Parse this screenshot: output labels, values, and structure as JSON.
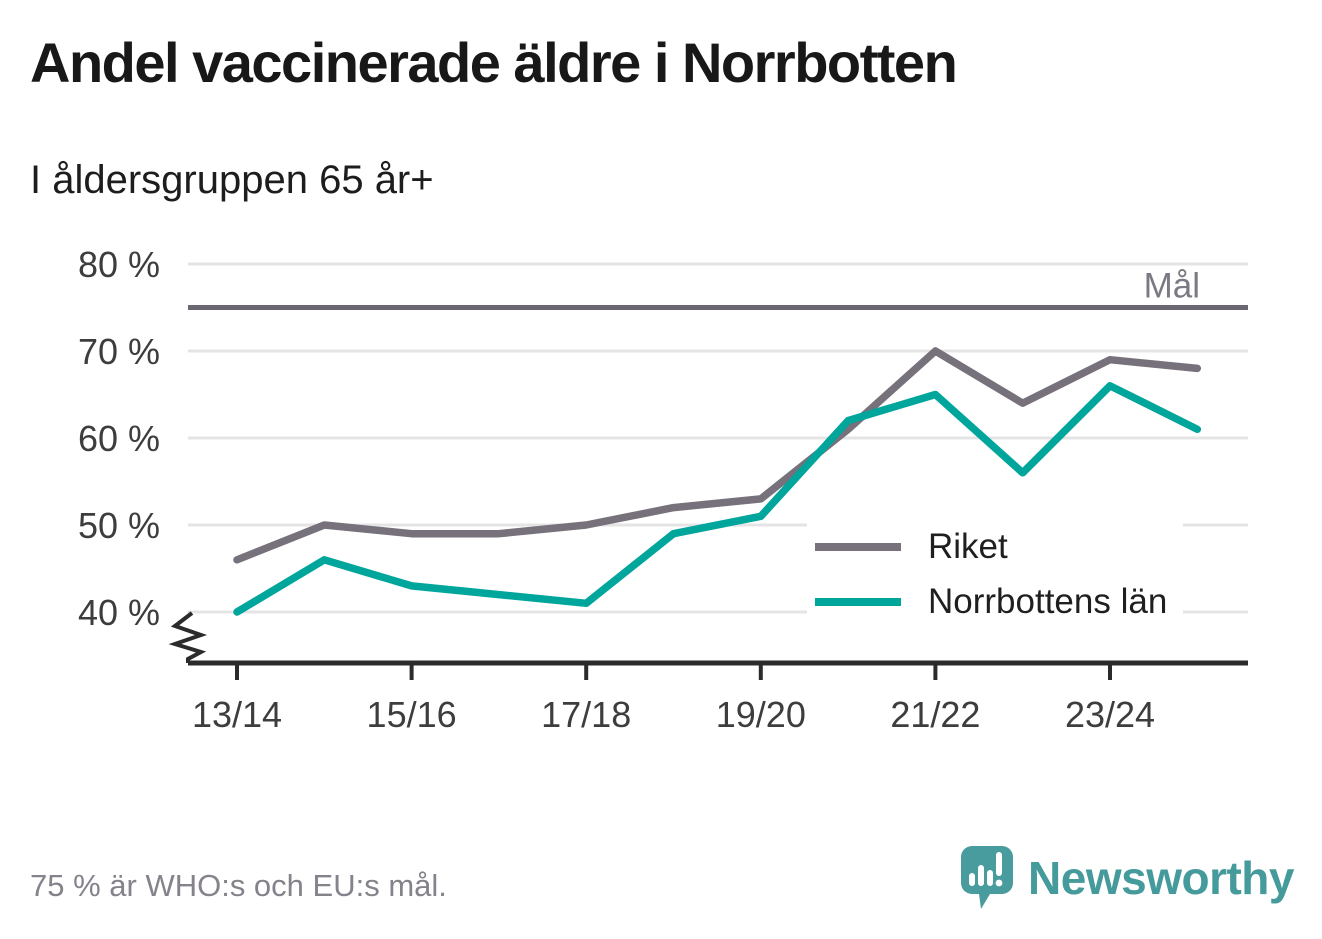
{
  "header": {
    "title": "Andel vaccinerade äldre i Norrbotten",
    "subtitle": "I åldersgruppen 65 år+"
  },
  "chart_data": {
    "type": "line",
    "x": [
      "13/14",
      "14/15",
      "15/16",
      "16/17",
      "17/18",
      "18/19",
      "19/20",
      "20/21",
      "21/22",
      "22/23",
      "23/24",
      "24/25"
    ],
    "x_tick_labels": [
      "13/14",
      "15/16",
      "17/18",
      "19/20",
      "21/22",
      "23/24"
    ],
    "series": [
      {
        "name": "Riket",
        "color": "#76717a",
        "values": [
          46,
          50,
          49,
          49,
          50,
          52,
          53,
          61,
          70,
          64,
          69,
          68
        ]
      },
      {
        "name": "Norrbottens län",
        "color": "#00a59b",
        "values": [
          40,
          46,
          43,
          42,
          41,
          49,
          51,
          62,
          65,
          56,
          66,
          61
        ]
      }
    ],
    "target": {
      "label": "Mål",
      "value": 75
    },
    "yticks": [
      40,
      50,
      60,
      70,
      80
    ],
    "ytick_suffix": " %",
    "ylim": [
      40,
      80
    ],
    "unit": "%",
    "grid": true,
    "axis_break": true,
    "legend_position": "inside-bottom-right"
  },
  "footer": {
    "note": "75 % är WHO:s och EU:s mål."
  },
  "brand": {
    "name": "Newsworthy",
    "color": "#459a9b"
  },
  "colors": {
    "grid": "#e4e4e4",
    "axis": "#2b2b2b",
    "target_line": "#6b6771",
    "tick_text": "#3d3d3d"
  }
}
